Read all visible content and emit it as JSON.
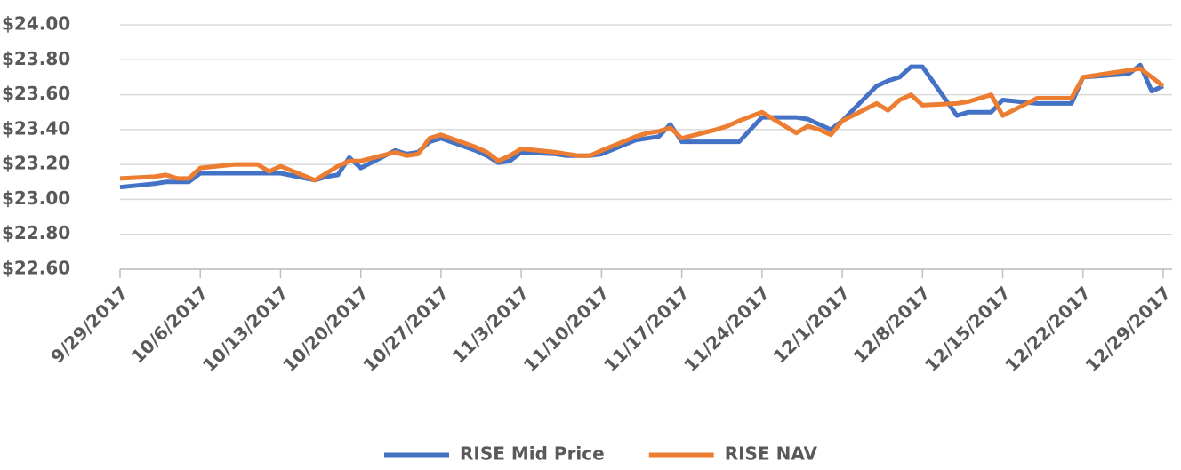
{
  "chart_data": {
    "type": "line",
    "x": [
      "9/29/2017",
      "10/2/2017",
      "10/3/2017",
      "10/4/2017",
      "10/5/2017",
      "10/6/2017",
      "10/9/2017",
      "10/10/2017",
      "10/11/2017",
      "10/12/2017",
      "10/13/2017",
      "10/16/2017",
      "10/17/2017",
      "10/18/2017",
      "10/19/2017",
      "10/20/2017",
      "10/23/2017",
      "10/24/2017",
      "10/25/2017",
      "10/26/2017",
      "10/27/2017",
      "10/30/2017",
      "10/31/2017",
      "11/1/2017",
      "11/2/2017",
      "11/3/2017",
      "11/6/2017",
      "11/7/2017",
      "11/8/2017",
      "11/9/2017",
      "11/10/2017",
      "11/13/2017",
      "11/14/2017",
      "11/15/2017",
      "11/16/2017",
      "11/17/2017",
      "11/20/2017",
      "11/21/2017",
      "11/22/2017",
      "11/24/2017",
      "11/27/2017",
      "11/28/2017",
      "11/29/2017",
      "11/30/2017",
      "12/1/2017",
      "12/4/2017",
      "12/5/2017",
      "12/6/2017",
      "12/7/2017",
      "12/8/2017",
      "12/11/2017",
      "12/12/2017",
      "12/13/2017",
      "12/14/2017",
      "12/15/2017",
      "12/18/2017",
      "12/19/2017",
      "12/20/2017",
      "12/21/2017",
      "12/22/2017",
      "12/26/2017",
      "12/27/2017",
      "12/28/2017",
      "12/29/2017"
    ],
    "series": [
      {
        "name": "RISE Mid Price",
        "color": "#4472c4",
        "values": [
          23.07,
          23.09,
          23.1,
          23.1,
          23.1,
          23.15,
          23.15,
          23.15,
          23.15,
          23.15,
          23.15,
          23.11,
          23.13,
          23.14,
          23.24,
          23.18,
          23.28,
          23.26,
          23.27,
          23.33,
          23.35,
          23.28,
          23.25,
          23.21,
          23.22,
          23.27,
          23.26,
          23.25,
          23.25,
          23.25,
          23.26,
          23.34,
          23.35,
          23.36,
          23.43,
          23.33,
          23.33,
          23.33,
          23.33,
          23.47,
          23.47,
          23.46,
          23.43,
          23.4,
          23.45,
          23.65,
          23.68,
          23.7,
          23.76,
          23.76,
          23.48,
          23.5,
          23.5,
          23.5,
          23.57,
          23.55,
          23.55,
          23.55,
          23.55,
          23.7,
          23.72,
          23.77,
          23.62,
          23.65
        ]
      },
      {
        "name": "RISE NAV",
        "color": "#ed7d31",
        "values": [
          23.12,
          23.13,
          23.14,
          23.12,
          23.12,
          23.18,
          23.2,
          23.2,
          23.2,
          23.16,
          23.19,
          23.11,
          23.15,
          23.19,
          23.22,
          23.22,
          23.27,
          23.25,
          23.26,
          23.35,
          23.37,
          23.3,
          23.27,
          23.22,
          23.25,
          23.29,
          23.27,
          23.26,
          23.25,
          23.25,
          23.28,
          23.36,
          23.38,
          23.39,
          23.41,
          23.35,
          23.4,
          23.42,
          23.45,
          23.5,
          23.38,
          23.42,
          23.4,
          23.37,
          23.45,
          23.55,
          23.51,
          23.57,
          23.6,
          23.54,
          23.55,
          23.56,
          23.58,
          23.6,
          23.48,
          23.58,
          23.58,
          23.58,
          23.58,
          23.7,
          23.74,
          23.75,
          23.7,
          23.65
        ]
      }
    ],
    "xlim": [
      "9/29/2017",
      "12/29/2017"
    ],
    "xticks": [
      "9/29/2017",
      "10/6/2017",
      "10/13/2017",
      "10/20/2017",
      "10/27/2017",
      "11/3/2017",
      "11/10/2017",
      "11/17/2017",
      "11/24/2017",
      "12/1/2017",
      "12/8/2017",
      "12/15/2017",
      "12/22/2017",
      "12/29/2017"
    ],
    "ylim": [
      22.6,
      24.0
    ],
    "yticks": [
      {
        "value": 22.6,
        "label": "$22.60"
      },
      {
        "value": 22.8,
        "label": "$22.80"
      },
      {
        "value": 23.0,
        "label": "$23.00"
      },
      {
        "value": 23.2,
        "label": "$23.20"
      },
      {
        "value": 23.4,
        "label": "$23.40"
      },
      {
        "value": 23.6,
        "label": "$23.60"
      },
      {
        "value": 23.8,
        "label": "$23.80"
      },
      {
        "value": 24.0,
        "label": "$24.00"
      }
    ],
    "grid": true,
    "legend": "bottom"
  }
}
